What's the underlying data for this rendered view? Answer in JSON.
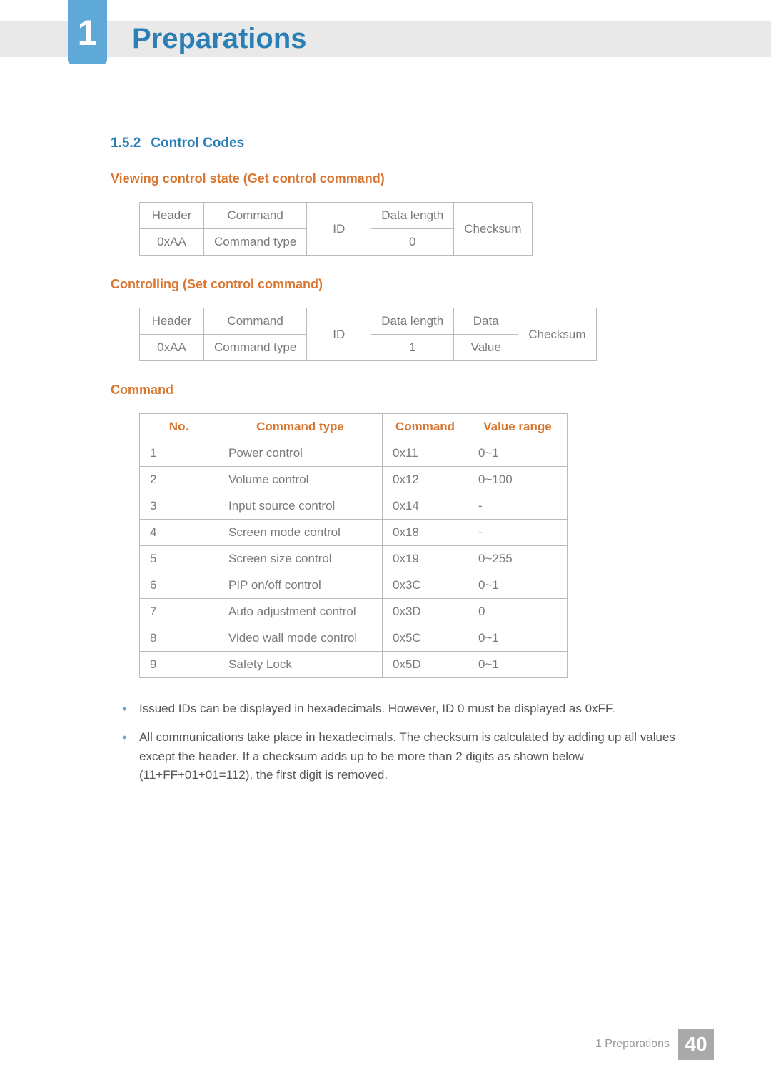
{
  "chapter": {
    "number": "1",
    "title": "Preparations"
  },
  "section": {
    "number": "1.5.2",
    "title": "Control Codes"
  },
  "table1": {
    "heading": "Viewing control state (Get control command)",
    "r1": {
      "c1": "Header",
      "c2": "Command",
      "c4": "Data length"
    },
    "r2": {
      "c1": "0xAA",
      "c2": "Command type",
      "c3": "ID",
      "c4": "0",
      "c5": "Checksum"
    }
  },
  "table2": {
    "heading": "Controlling (Set control command)",
    "r1": {
      "c1": "Header",
      "c2": "Command",
      "c4": "Data length",
      "c5": "Data"
    },
    "r2": {
      "c1": "0xAA",
      "c2": "Command type",
      "c3": "ID",
      "c4": "1",
      "c5": "Value",
      "c6": "Checksum"
    }
  },
  "table3": {
    "heading": "Command",
    "head": {
      "c1": "No.",
      "c2": "Command type",
      "c3": "Command",
      "c4": "Value range"
    },
    "rows": [
      {
        "c1": "1",
        "c2": "Power control",
        "c3": "0x11",
        "c4": "0~1"
      },
      {
        "c1": "2",
        "c2": "Volume control",
        "c3": "0x12",
        "c4": "0~100"
      },
      {
        "c1": "3",
        "c2": "Input source control",
        "c3": "0x14",
        "c4": "-"
      },
      {
        "c1": "4",
        "c2": "Screen mode control",
        "c3": "0x18",
        "c4": "-"
      },
      {
        "c1": "5",
        "c2": "Screen size control",
        "c3": "0x19",
        "c4": "0~255"
      },
      {
        "c1": "6",
        "c2": "PIP on/off control",
        "c3": "0x3C",
        "c4": "0~1"
      },
      {
        "c1": "7",
        "c2": "Auto adjustment control",
        "c3": "0x3D",
        "c4": "0"
      },
      {
        "c1": "8",
        "c2": "Video wall mode control",
        "c3": "0x5C",
        "c4": "0~1"
      },
      {
        "c1": "9",
        "c2": "Safety Lock",
        "c3": "0x5D",
        "c4": "0~1"
      }
    ]
  },
  "bullets": {
    "b1": "Issued IDs can be displayed in hexadecimals. However, ID 0 must be displayed as 0xFF.",
    "b2": "All communications take place in hexadecimals. The checksum is calculated by adding up all values except the header. If a checksum adds up to be more than 2 digits as shown below (11+FF+01+01=112), the first digit is removed."
  },
  "footer": {
    "text": "1 Preparations",
    "page": "40"
  },
  "colors": {
    "accent_blue": "#2b7fb5",
    "badge_blue": "#5fa9d8",
    "accent_orange": "#d9762f",
    "top_bar": "#e9e9e9",
    "text_gray": "#7a7a7a",
    "page_badge": "#a9a9a9"
  }
}
